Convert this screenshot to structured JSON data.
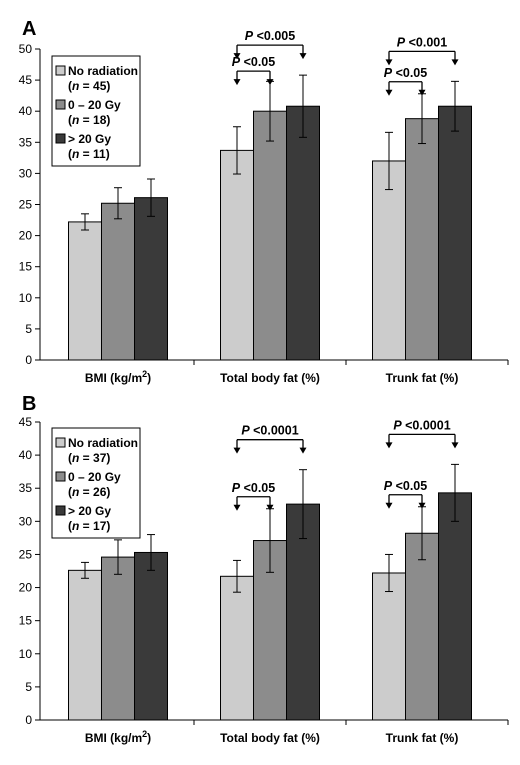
{
  "chart_data": [
    {
      "type": "bar",
      "panel": "A",
      "categories": [
        "BMI (kg/m2)",
        "Total body fat (%)",
        "Trunk fat (%)"
      ],
      "ylim": [
        0,
        50
      ],
      "yticks": [
        0,
        5,
        10,
        15,
        20,
        25,
        30,
        35,
        40,
        45,
        50
      ],
      "series": [
        {
          "name": "No radiation",
          "n": "45",
          "values": [
            22.2,
            33.7,
            32.0
          ],
          "err": [
            1.3,
            3.8,
            4.6
          ],
          "color": "#cccccc"
        },
        {
          "name": "0 – 20 Gy",
          "n": "18",
          "values": [
            25.2,
            40.0,
            38.8
          ],
          "err": [
            2.5,
            4.8,
            4.0
          ],
          "color": "#8c8c8c"
        },
        {
          "name": "> 20 Gy",
          "n": "11",
          "values": [
            26.1,
            40.8,
            40.8
          ],
          "err": [
            3.0,
            5.0,
            4.0
          ],
          "color": "#3a3a3a"
        }
      ],
      "annotations": [
        {
          "category": 1,
          "from": 0,
          "to": 1,
          "label": "P <0.05"
        },
        {
          "category": 1,
          "from": 0,
          "to": 2,
          "label": "P <0.005"
        },
        {
          "category": 2,
          "from": 0,
          "to": 1,
          "label": "P <0.05"
        },
        {
          "category": 2,
          "from": 0,
          "to": 2,
          "label": "P <0.001"
        }
      ],
      "legend": "top-left",
      "grid": false
    },
    {
      "type": "bar",
      "panel": "B",
      "categories": [
        "BMI (kg/m2)",
        "Total body fat (%)",
        "Trunk fat (%)"
      ],
      "ylim": [
        0,
        45
      ],
      "yticks": [
        0,
        5,
        10,
        15,
        20,
        25,
        30,
        35,
        40,
        45
      ],
      "series": [
        {
          "name": "No radiation",
          "n": "37",
          "values": [
            22.6,
            21.7,
            22.2
          ],
          "err": [
            1.2,
            2.4,
            2.8
          ],
          "color": "#cccccc"
        },
        {
          "name": "0 – 20 Gy",
          "n": "26",
          "values": [
            24.6,
            27.1,
            28.2
          ],
          "err": [
            2.6,
            4.8,
            4.0
          ],
          "color": "#8c8c8c"
        },
        {
          "name": "> 20 Gy",
          "n": "17",
          "values": [
            25.3,
            32.6,
            34.3
          ],
          "err": [
            2.7,
            5.2,
            4.3
          ],
          "color": "#3a3a3a"
        }
      ],
      "annotations": [
        {
          "category": 1,
          "from": 0,
          "to": 1,
          "label": "P <0.05"
        },
        {
          "category": 1,
          "from": 0,
          "to": 2,
          "label": "P <0.0001"
        },
        {
          "category": 2,
          "from": 0,
          "to": 1,
          "label": "P <0.05"
        },
        {
          "category": 2,
          "from": 0,
          "to": 2,
          "label": "P <0.0001"
        }
      ],
      "legend": "top-left",
      "grid": false
    }
  ]
}
